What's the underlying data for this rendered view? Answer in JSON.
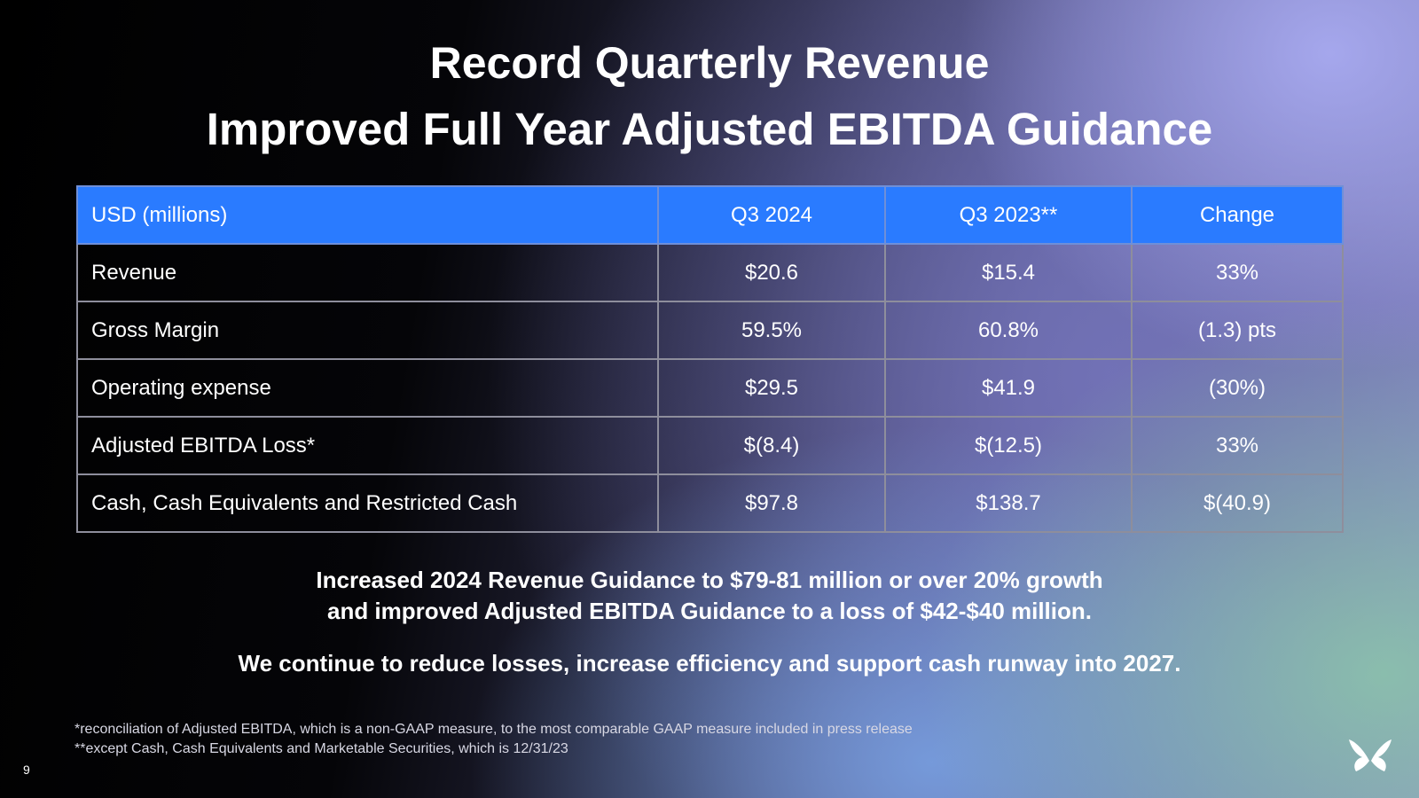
{
  "slide": {
    "title_line1": "Record Quarterly Revenue",
    "title_line2": "Improved Full Year Adjusted EBITDA Guidance",
    "page_number": "9"
  },
  "table": {
    "headers": [
      "USD (millions)",
      "Q3 2024",
      "Q3 2023**",
      "Change"
    ],
    "rows": [
      [
        "Revenue",
        "$20.6",
        "$15.4",
        "33%"
      ],
      [
        "Gross Margin",
        "59.5%",
        "60.8%",
        "(1.3) pts"
      ],
      [
        "Operating expense",
        "$29.5",
        "$41.9",
        "(30%)"
      ],
      [
        "Adjusted EBITDA Loss*",
        "$(8.4)",
        "$(12.5)",
        "33%"
      ],
      [
        "Cash, Cash Equivalents and Restricted Cash",
        "$97.8",
        "$138.7",
        "$(40.9)"
      ]
    ]
  },
  "guidance": {
    "line1": "Increased 2024 Revenue Guidance to $79-81 million or over 20% growth",
    "line2": "and improved Adjusted EBITDA Guidance to a loss of $42-$40 million.",
    "line3": "We continue to reduce losses, increase efficiency and support cash runway into 2027."
  },
  "footnotes": {
    "note1": "*reconciliation of Adjusted EBITDA, which is a non-GAAP measure, to the most comparable GAAP measure included in press release",
    "note2": "**except Cash, Cash Equivalents and Marketable Securities, which is 12/31/23"
  },
  "icons": {
    "logo": "butterfly-logo-icon"
  },
  "colors": {
    "header_blue": "#2a7bff"
  }
}
